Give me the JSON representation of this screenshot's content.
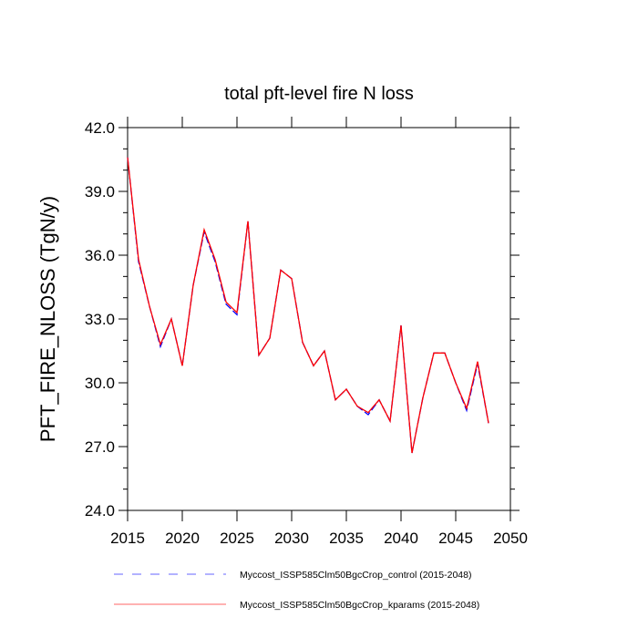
{
  "chart_data": {
    "type": "line",
    "title": "total pft-level fire N loss",
    "xlabel": "",
    "ylabel": "PFT_FIRE_NLOSS  (TgN/y)",
    "xlim": [
      2015,
      2050
    ],
    "ylim": [
      24.0,
      42.0
    ],
    "xticks": [
      2015,
      2020,
      2025,
      2030,
      2035,
      2040,
      2045,
      2050
    ],
    "xtick_labels": [
      "2015",
      "2020",
      "2025",
      "2030",
      "2035",
      "2040",
      "2045",
      "2050"
    ],
    "yticks": [
      24,
      27,
      30,
      33,
      36,
      39,
      42
    ],
    "ytick_labels": [
      "24.0",
      "27.0",
      "30.0",
      "33.0",
      "36.0",
      "39.0",
      "42.0"
    ],
    "grid": false,
    "legend_position": "bottom",
    "x": [
      2015,
      2016,
      2017,
      2018,
      2019,
      2020,
      2021,
      2022,
      2023,
      2024,
      2025,
      2026,
      2027,
      2028,
      2029,
      2030,
      2031,
      2032,
      2033,
      2034,
      2035,
      2036,
      2037,
      2038,
      2039,
      2040,
      2041,
      2042,
      2043,
      2044,
      2045,
      2046,
      2047,
      2048
    ],
    "series": [
      {
        "name": "Myccost_ISSP585Clm50BgcCrop_control (2015-2048)",
        "color": "#0000ff",
        "style": "dashed",
        "values": [
          40.6,
          35.7,
          33.6,
          31.7,
          33.0,
          30.8,
          34.6,
          37.1,
          35.7,
          33.7,
          33.2,
          37.6,
          31.3,
          32.1,
          35.3,
          34.9,
          31.9,
          30.8,
          31.5,
          29.2,
          29.7,
          28.9,
          28.5,
          29.2,
          28.2,
          32.7,
          26.7,
          29.3,
          31.4,
          31.4,
          30.0,
          28.7,
          30.9,
          28.1
        ]
      },
      {
        "name": "Myccost_ISSP585Clm50BgcCrop_kparams (2015-2048)",
        "color": "#ff0000",
        "style": "solid",
        "values": [
          40.6,
          35.8,
          33.6,
          31.8,
          33.0,
          30.8,
          34.6,
          37.2,
          35.8,
          33.8,
          33.3,
          37.6,
          31.3,
          32.1,
          35.3,
          34.9,
          31.9,
          30.8,
          31.5,
          29.2,
          29.7,
          28.9,
          28.6,
          29.2,
          28.2,
          32.7,
          26.7,
          29.3,
          31.4,
          31.4,
          30.0,
          28.8,
          31.0,
          28.1
        ]
      }
    ]
  }
}
